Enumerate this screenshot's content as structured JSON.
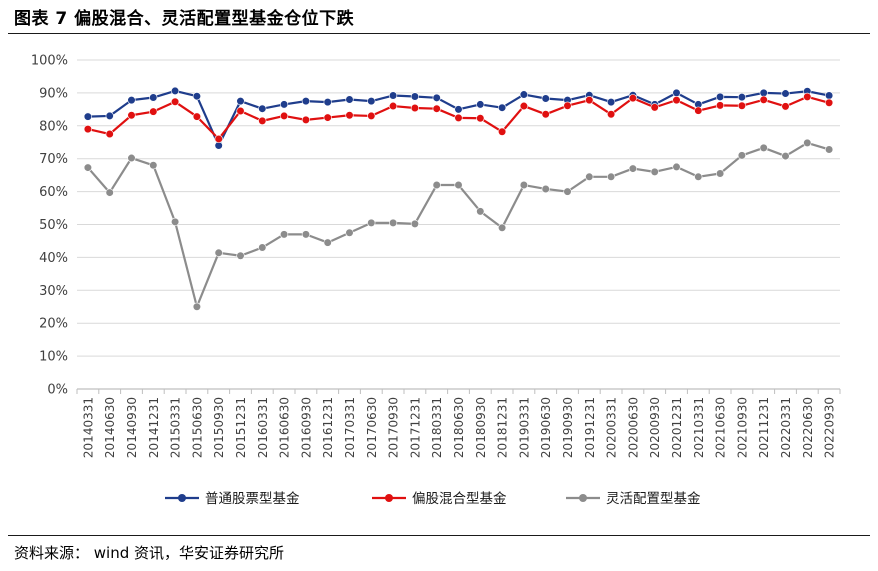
{
  "header": {
    "title": "图表 7  偏股混合、灵活配置型基金仓位下跌"
  },
  "footer": {
    "source": "资料来源： wind 资讯，华安证券研究所"
  },
  "colors": {
    "series_1": "#1f3d8c",
    "series_2": "#e01010",
    "series_3": "#8c8c8c",
    "axis": "#bfbfbf",
    "grid": "#d9d9d9"
  },
  "chart_data": {
    "type": "line",
    "title": "",
    "xlabel": "",
    "ylabel": "",
    "ylim": [
      0,
      100
    ],
    "yticks": [
      "0%",
      "10%",
      "20%",
      "30%",
      "40%",
      "50%",
      "60%",
      "70%",
      "80%",
      "90%",
      "100%"
    ],
    "grid": "horizontal",
    "legend_position": "bottom",
    "categories": [
      "20140331",
      "20140630",
      "20140930",
      "20141231",
      "20150331",
      "20150630",
      "20150930",
      "20151231",
      "20160331",
      "20160630",
      "20160930",
      "20161231",
      "20170331",
      "20170630",
      "20170930",
      "20171231",
      "20180331",
      "20180630",
      "20180930",
      "20181231",
      "20190331",
      "20190630",
      "20190930",
      "20191231",
      "20200331",
      "20200630",
      "20200930",
      "20201231",
      "20210331",
      "20210630",
      "20210930",
      "20211231",
      "20220331",
      "20220630",
      "20220930"
    ],
    "series": [
      {
        "name": "普通股票型基金",
        "color": "#1f3d8c",
        "values": [
          82.8,
          83.0,
          87.8,
          88.6,
          90.6,
          89.0,
          74.0,
          87.5,
          85.2,
          86.5,
          87.5,
          87.2,
          88.0,
          87.5,
          89.2,
          88.9,
          88.5,
          85.0,
          86.5,
          85.5,
          89.5,
          88.3,
          87.8,
          89.3,
          87.2,
          89.3,
          86.5,
          90.0,
          86.5,
          88.8,
          88.7,
          90.0,
          89.8,
          90.5,
          89.2
        ]
      },
      {
        "name": "偏股混合型基金",
        "color": "#e01010",
        "values": [
          79.0,
          77.5,
          83.2,
          84.3,
          87.3,
          82.8,
          76.0,
          84.5,
          81.5,
          83.0,
          81.8,
          82.5,
          83.2,
          83.0,
          86.0,
          85.4,
          85.2,
          82.4,
          82.3,
          78.2,
          86.0,
          83.5,
          86.1,
          87.8,
          83.5,
          88.4,
          85.6,
          87.8,
          84.6,
          86.2,
          86.1,
          87.9,
          85.9,
          88.8,
          87.0
        ]
      },
      {
        "name": "灵活配置型基金",
        "color": "#8c8c8c",
        "values": [
          67.3,
          59.7,
          70.2,
          68.0,
          50.8,
          25.0,
          41.4,
          40.5,
          43.0,
          47.0,
          47.0,
          44.5,
          47.5,
          50.5,
          50.5,
          50.2,
          62.0,
          62.0,
          54.0,
          49.0,
          62.0,
          60.8,
          60.0,
          64.5,
          64.5,
          67.0,
          66.0,
          67.5,
          64.5,
          65.5,
          71.0,
          73.3,
          70.8,
          74.8,
          72.8
        ]
      }
    ]
  }
}
